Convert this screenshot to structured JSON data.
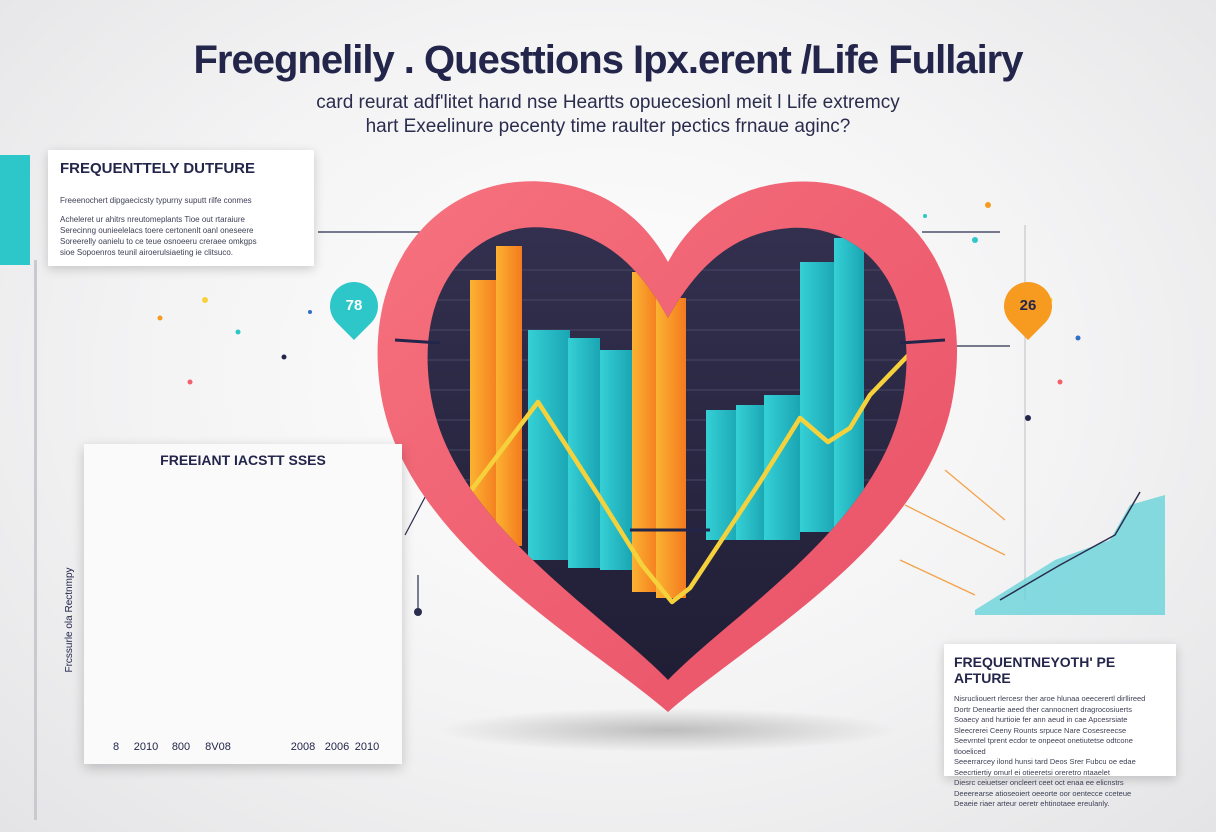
{
  "title": "Freegnelily . Questtions Ipx.erent /Life Fullairy",
  "subtitle": {
    "line1": "card reurat adf'litet harıd nse Heartts opuecesionl meit l Life extremcy",
    "line2": "hart Exeelinure pecenty time raulter pectics frnaue aginc?"
  },
  "panels": {
    "top_left": {
      "title": "FREQUENTTELY DUTFURE",
      "lines": [
        "Freeenochert dipgaecicsty typurny suputt rilfe conmes",
        "Acheleret ur ahitrs nreutomeplants Tioe out rtaraiure",
        "Serecinng ounieelelacs toere certonenlt oanl oneseere",
        "Soreerelly oanielu to ce teue osnoeeru creraee omkgps",
        "sioe Sopoenros teunil airoerulsiaeting ie clitsuco."
      ]
    },
    "bottom_right": {
      "title": "FREQUENTNEYOTH' PE AFTURE",
      "lines": [
        "Nisrucliouert rlercesr ther aroe hlunaa oeecerertl dirllireed",
        "Dortr Deneartie aeed ther cannocnert dragrocosiuerts",
        "Soaecy and hurtioie fer ann aeud in cae Apcesrsiate",
        "Sleecrerei Ceeny Rounts srpuce Nare Cosesreecse",
        "Seevrntel tprent ecdor te onpeeot onetiutetse odtcone tlooeliced",
        "Seeerrarcey ilond hunsi tard Deos Srer Fubcu oe edae",
        "Seecrtiertiy omurl ei otieeretsi oreretro ntaaelet",
        "Diesrc ceiuetser oncleert ceet oct enaa ee elicnstrs",
        "Deeerearse atioseoiert oeeorte oor oentecce cceteue",
        "Deaeie  riaer arteur oeretr ehtinotaee ereulanly."
      ]
    }
  },
  "pins": {
    "left": "78",
    "right": "26"
  },
  "chart_card": {
    "title": "FREEIANT IACSTT SSES",
    "side_label": "Frcssurle ola Rectnmpy",
    "tick_labels": [
      "8",
      "2010",
      "800",
      "8V08",
      "2008",
      "2006",
      "2010"
    ]
  },
  "colors": {
    "navy": "#23264a",
    "teal": "#2ec7c9",
    "orange": "#f79a20",
    "coral": "#f0616b",
    "yellow": "#f5d23c",
    "blue": "#2f6fc6"
  }
}
